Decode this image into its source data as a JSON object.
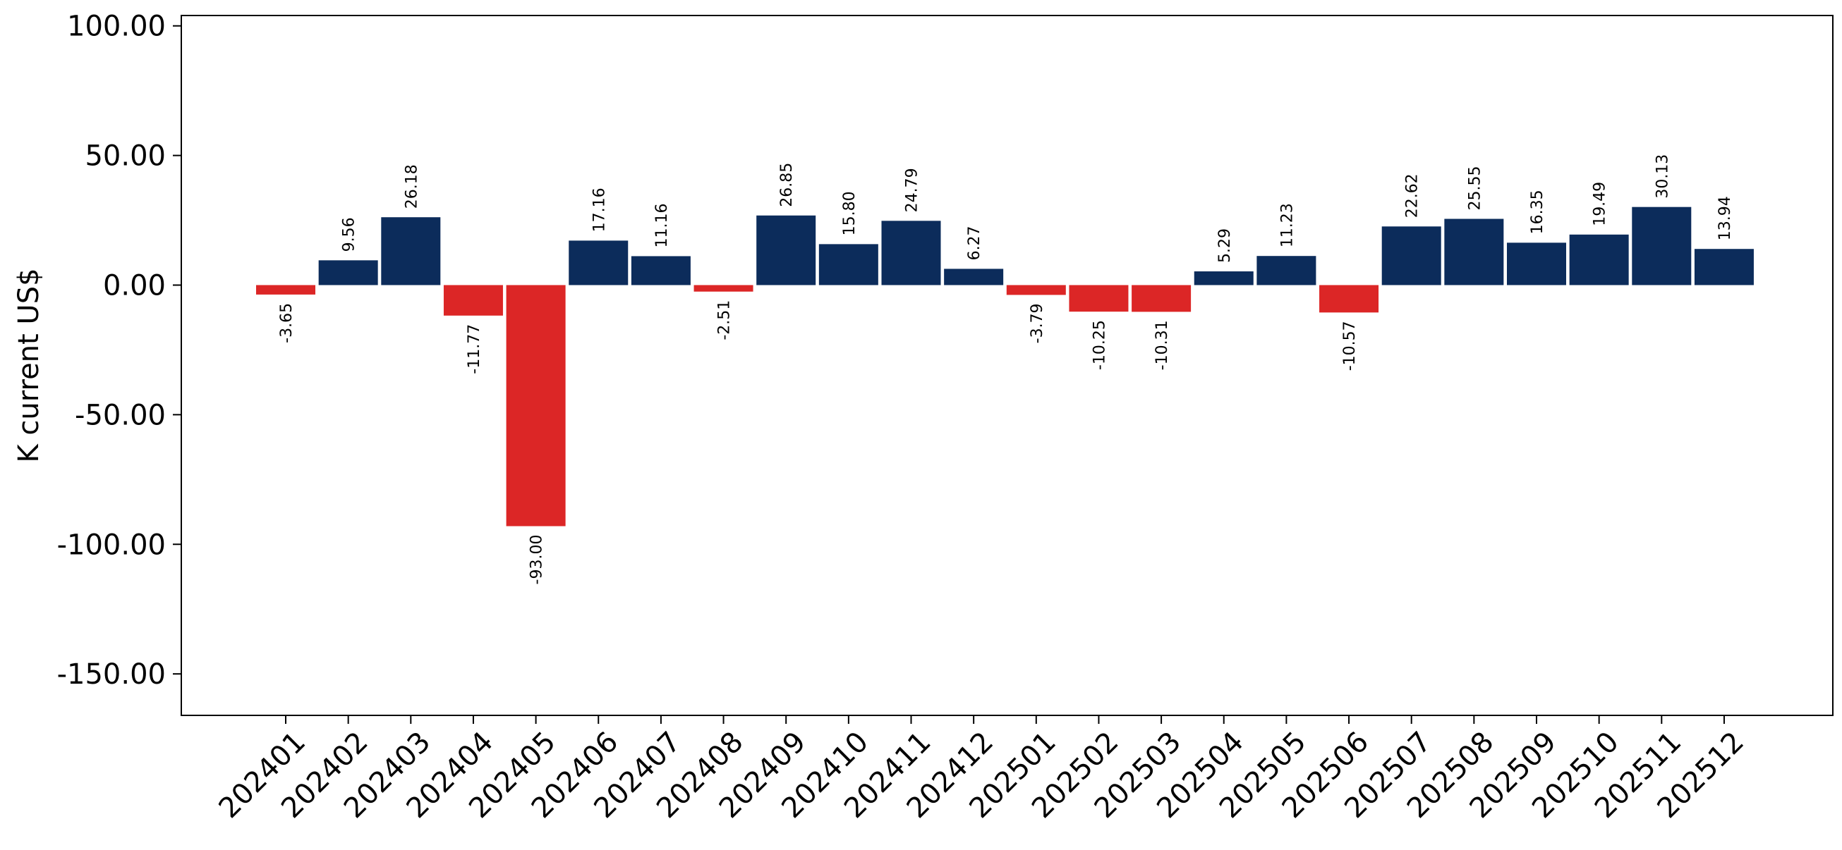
{
  "chart_data": {
    "type": "bar",
    "title": "",
    "xlabel": "",
    "ylabel": "K current US$",
    "ylim": [
      -166,
      104
    ],
    "yticks": [
      100,
      50,
      0,
      -50,
      -100,
      -150
    ],
    "ytick_labels": [
      "100.00",
      "50.00",
      "0.00",
      "-50.00",
      "-100.00",
      "-150.00"
    ],
    "categories": [
      "202401",
      "202402",
      "202403",
      "202404",
      "202405",
      "202406",
      "202407",
      "202408",
      "202409",
      "202410",
      "202411",
      "202412",
      "202501",
      "202502",
      "202503",
      "202504",
      "202505",
      "202506",
      "202507",
      "202508",
      "202509",
      "202510",
      "202511",
      "202512"
    ],
    "values": [
      -3.65,
      9.56,
      26.18,
      -11.77,
      -93.0,
      17.16,
      11.16,
      -2.51,
      26.85,
      15.8,
      24.79,
      6.27,
      -3.79,
      -10.25,
      -10.31,
      5.29,
      11.23,
      -10.57,
      22.62,
      25.55,
      16.35,
      19.49,
      30.13,
      13.94
    ],
    "value_labels": [
      "-3.65",
      "9.56",
      "26.18",
      "-11.77",
      "-93.00",
      "17.16",
      "11.16",
      "-2.51",
      "26.85",
      "15.80",
      "24.79",
      "6.27",
      "-3.79",
      "-10.25",
      "-10.31",
      "5.29",
      "11.23",
      "-10.57",
      "22.62",
      "25.55",
      "16.35",
      "19.49",
      "30.13",
      "13.94"
    ],
    "colors": {
      "positive": "#0c2c5b",
      "negative": "#dc2626"
    },
    "grid": false,
    "legend": "none"
  }
}
